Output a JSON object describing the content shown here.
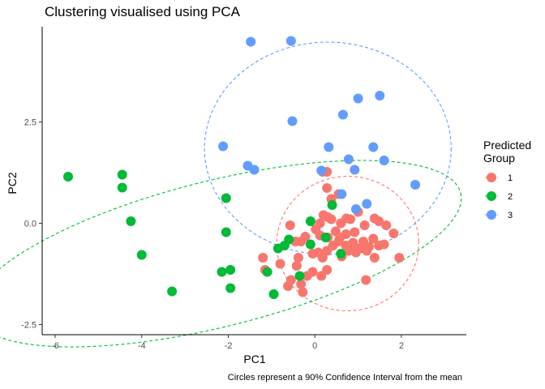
{
  "chart_data": {
    "type": "scatter",
    "title": "Clustering visualised using PCA",
    "xlabel": "PC1",
    "ylabel": "PC2",
    "caption": "Circles represent a 90% Confidence Interval from the mean",
    "xlim": [
      -6.3,
      3.5
    ],
    "ylim": [
      -2.75,
      4.85
    ],
    "x_ticks": [
      -6,
      -4,
      -2,
      0,
      2
    ],
    "y_ticks": [
      -2.5,
      0.0,
      2.5
    ],
    "x_tick_labels": [
      "-6",
      "-4",
      "-2",
      "0",
      "2"
    ],
    "y_tick_labels": [
      "-2.5",
      "0.0",
      "2.5"
    ],
    "grid": false,
    "legend": {
      "title_lines": [
        "Predicted",
        "Group"
      ],
      "placement": "right",
      "labels": [
        "1",
        "2",
        "3"
      ]
    },
    "series": [
      {
        "name": "1",
        "color": "#F8766D",
        "ellipse": {
          "cx": 0.76,
          "cy": -0.5,
          "rx": 1.64,
          "ry": 1.66,
          "rotation_deg": 2
        },
        "points": [
          [
            0.18,
            1.27
          ],
          [
            0.28,
            1.27
          ],
          [
            0.28,
            0.87
          ],
          [
            0.55,
            0.72
          ],
          [
            0.38,
            0.6
          ],
          [
            0.2,
            0.2
          ],
          [
            0.12,
            0.0
          ],
          [
            -0.57,
            -0.05
          ],
          [
            0.6,
            0.0
          ],
          [
            0.38,
            0.1
          ],
          [
            0.3,
            0.15
          ],
          [
            0.82,
            0.1
          ],
          [
            0.73,
            0.12
          ],
          [
            1.0,
            0.28
          ],
          [
            1.38,
            0.12
          ],
          [
            1.48,
            0.05
          ],
          [
            1.65,
            -0.05
          ],
          [
            1.82,
            -0.25
          ],
          [
            1.15,
            -0.05
          ],
          [
            0.92,
            -0.22
          ],
          [
            0.72,
            -0.27
          ],
          [
            0.48,
            -0.2
          ],
          [
            0.3,
            -0.35
          ],
          [
            0.12,
            -0.3
          ],
          [
            0.02,
            -0.15
          ],
          [
            -0.22,
            -0.33
          ],
          [
            -0.45,
            -0.45
          ],
          [
            -0.32,
            -0.45
          ],
          [
            -0.38,
            -0.85
          ],
          [
            -0.05,
            -0.75
          ],
          [
            0.08,
            -0.72
          ],
          [
            0.18,
            -0.85
          ],
          [
            0.28,
            -0.68
          ],
          [
            0.42,
            -0.55
          ],
          [
            0.55,
            -0.45
          ],
          [
            0.72,
            -0.55
          ],
          [
            0.88,
            -0.48
          ],
          [
            1.05,
            -0.62
          ],
          [
            1.25,
            -0.58
          ],
          [
            1.48,
            -0.55
          ],
          [
            1.6,
            -0.52
          ],
          [
            1.35,
            -0.38
          ],
          [
            1.12,
            -0.45
          ],
          [
            0.95,
            -0.72
          ],
          [
            0.78,
            -0.68
          ],
          [
            0.62,
            -0.82
          ],
          [
            1.2,
            -0.68
          ],
          [
            1.38,
            -0.85
          ],
          [
            1.95,
            -0.85
          ],
          [
            -1.2,
            -0.85
          ],
          [
            -1.15,
            -1.15
          ],
          [
            -0.8,
            -1.0
          ],
          [
            -0.42,
            -1.05
          ],
          [
            -0.18,
            -1.3
          ],
          [
            -0.32,
            -1.5
          ],
          [
            -0.55,
            -1.4
          ],
          [
            -0.62,
            -1.55
          ],
          [
            -0.28,
            -1.7
          ],
          [
            -0.05,
            -1.2
          ],
          [
            0.15,
            -1.3
          ],
          [
            0.28,
            -1.15
          ],
          [
            1.18,
            -1.4
          ],
          [
            0.98,
            -0.62
          ],
          [
            0.58,
            -0.35
          ]
        ]
      },
      {
        "name": "2",
        "color": "#00BA38",
        "ellipse": {
          "cx": -2.26,
          "cy": -0.75,
          "rx": 5.8,
          "ry": 1.8,
          "rotation_deg": 14
        },
        "points": [
          [
            -5.7,
            1.15
          ],
          [
            -4.45,
            1.2
          ],
          [
            -4.45,
            0.88
          ],
          [
            -4.25,
            0.05
          ],
          [
            -4.0,
            -0.78
          ],
          [
            -3.3,
            -1.68
          ],
          [
            -2.05,
            0.62
          ],
          [
            -2.05,
            -0.22
          ],
          [
            -1.95,
            -1.15
          ],
          [
            -1.95,
            -1.6
          ],
          [
            -2.15,
            -1.2
          ],
          [
            -1.1,
            -1.2
          ],
          [
            -0.95,
            -1.75
          ],
          [
            -0.85,
            -0.62
          ],
          [
            -0.7,
            -0.55
          ],
          [
            -0.6,
            -0.4
          ],
          [
            -0.35,
            -1.3
          ],
          [
            -0.1,
            0.05
          ],
          [
            0.4,
            0.45
          ],
          [
            0.25,
            -0.35
          ],
          [
            0.6,
            -0.75
          ],
          [
            -0.1,
            -0.52
          ]
        ]
      },
      {
        "name": "3",
        "color": "#619CFF",
        "ellipse": {
          "cx": 0.3,
          "cy": 1.85,
          "rx": 2.85,
          "ry": 2.62,
          "rotation_deg": 0
        },
        "points": [
          [
            -1.48,
            4.48
          ],
          [
            -0.55,
            4.5
          ],
          [
            -0.52,
            2.52
          ],
          [
            -2.12,
            1.9
          ],
          [
            -1.55,
            1.42
          ],
          [
            -1.4,
            1.32
          ],
          [
            0.15,
            1.3
          ],
          [
            0.32,
            1.88
          ],
          [
            0.65,
            2.68
          ],
          [
            0.78,
            1.58
          ],
          [
            0.92,
            1.32
          ],
          [
            1.0,
            3.08
          ],
          [
            1.5,
            3.15
          ],
          [
            1.35,
            1.88
          ],
          [
            1.6,
            1.55
          ],
          [
            2.32,
            0.95
          ],
          [
            1.2,
            0.48
          ],
          [
            0.62,
            0.72
          ],
          [
            0.95,
            0.35
          ]
        ]
      }
    ]
  }
}
